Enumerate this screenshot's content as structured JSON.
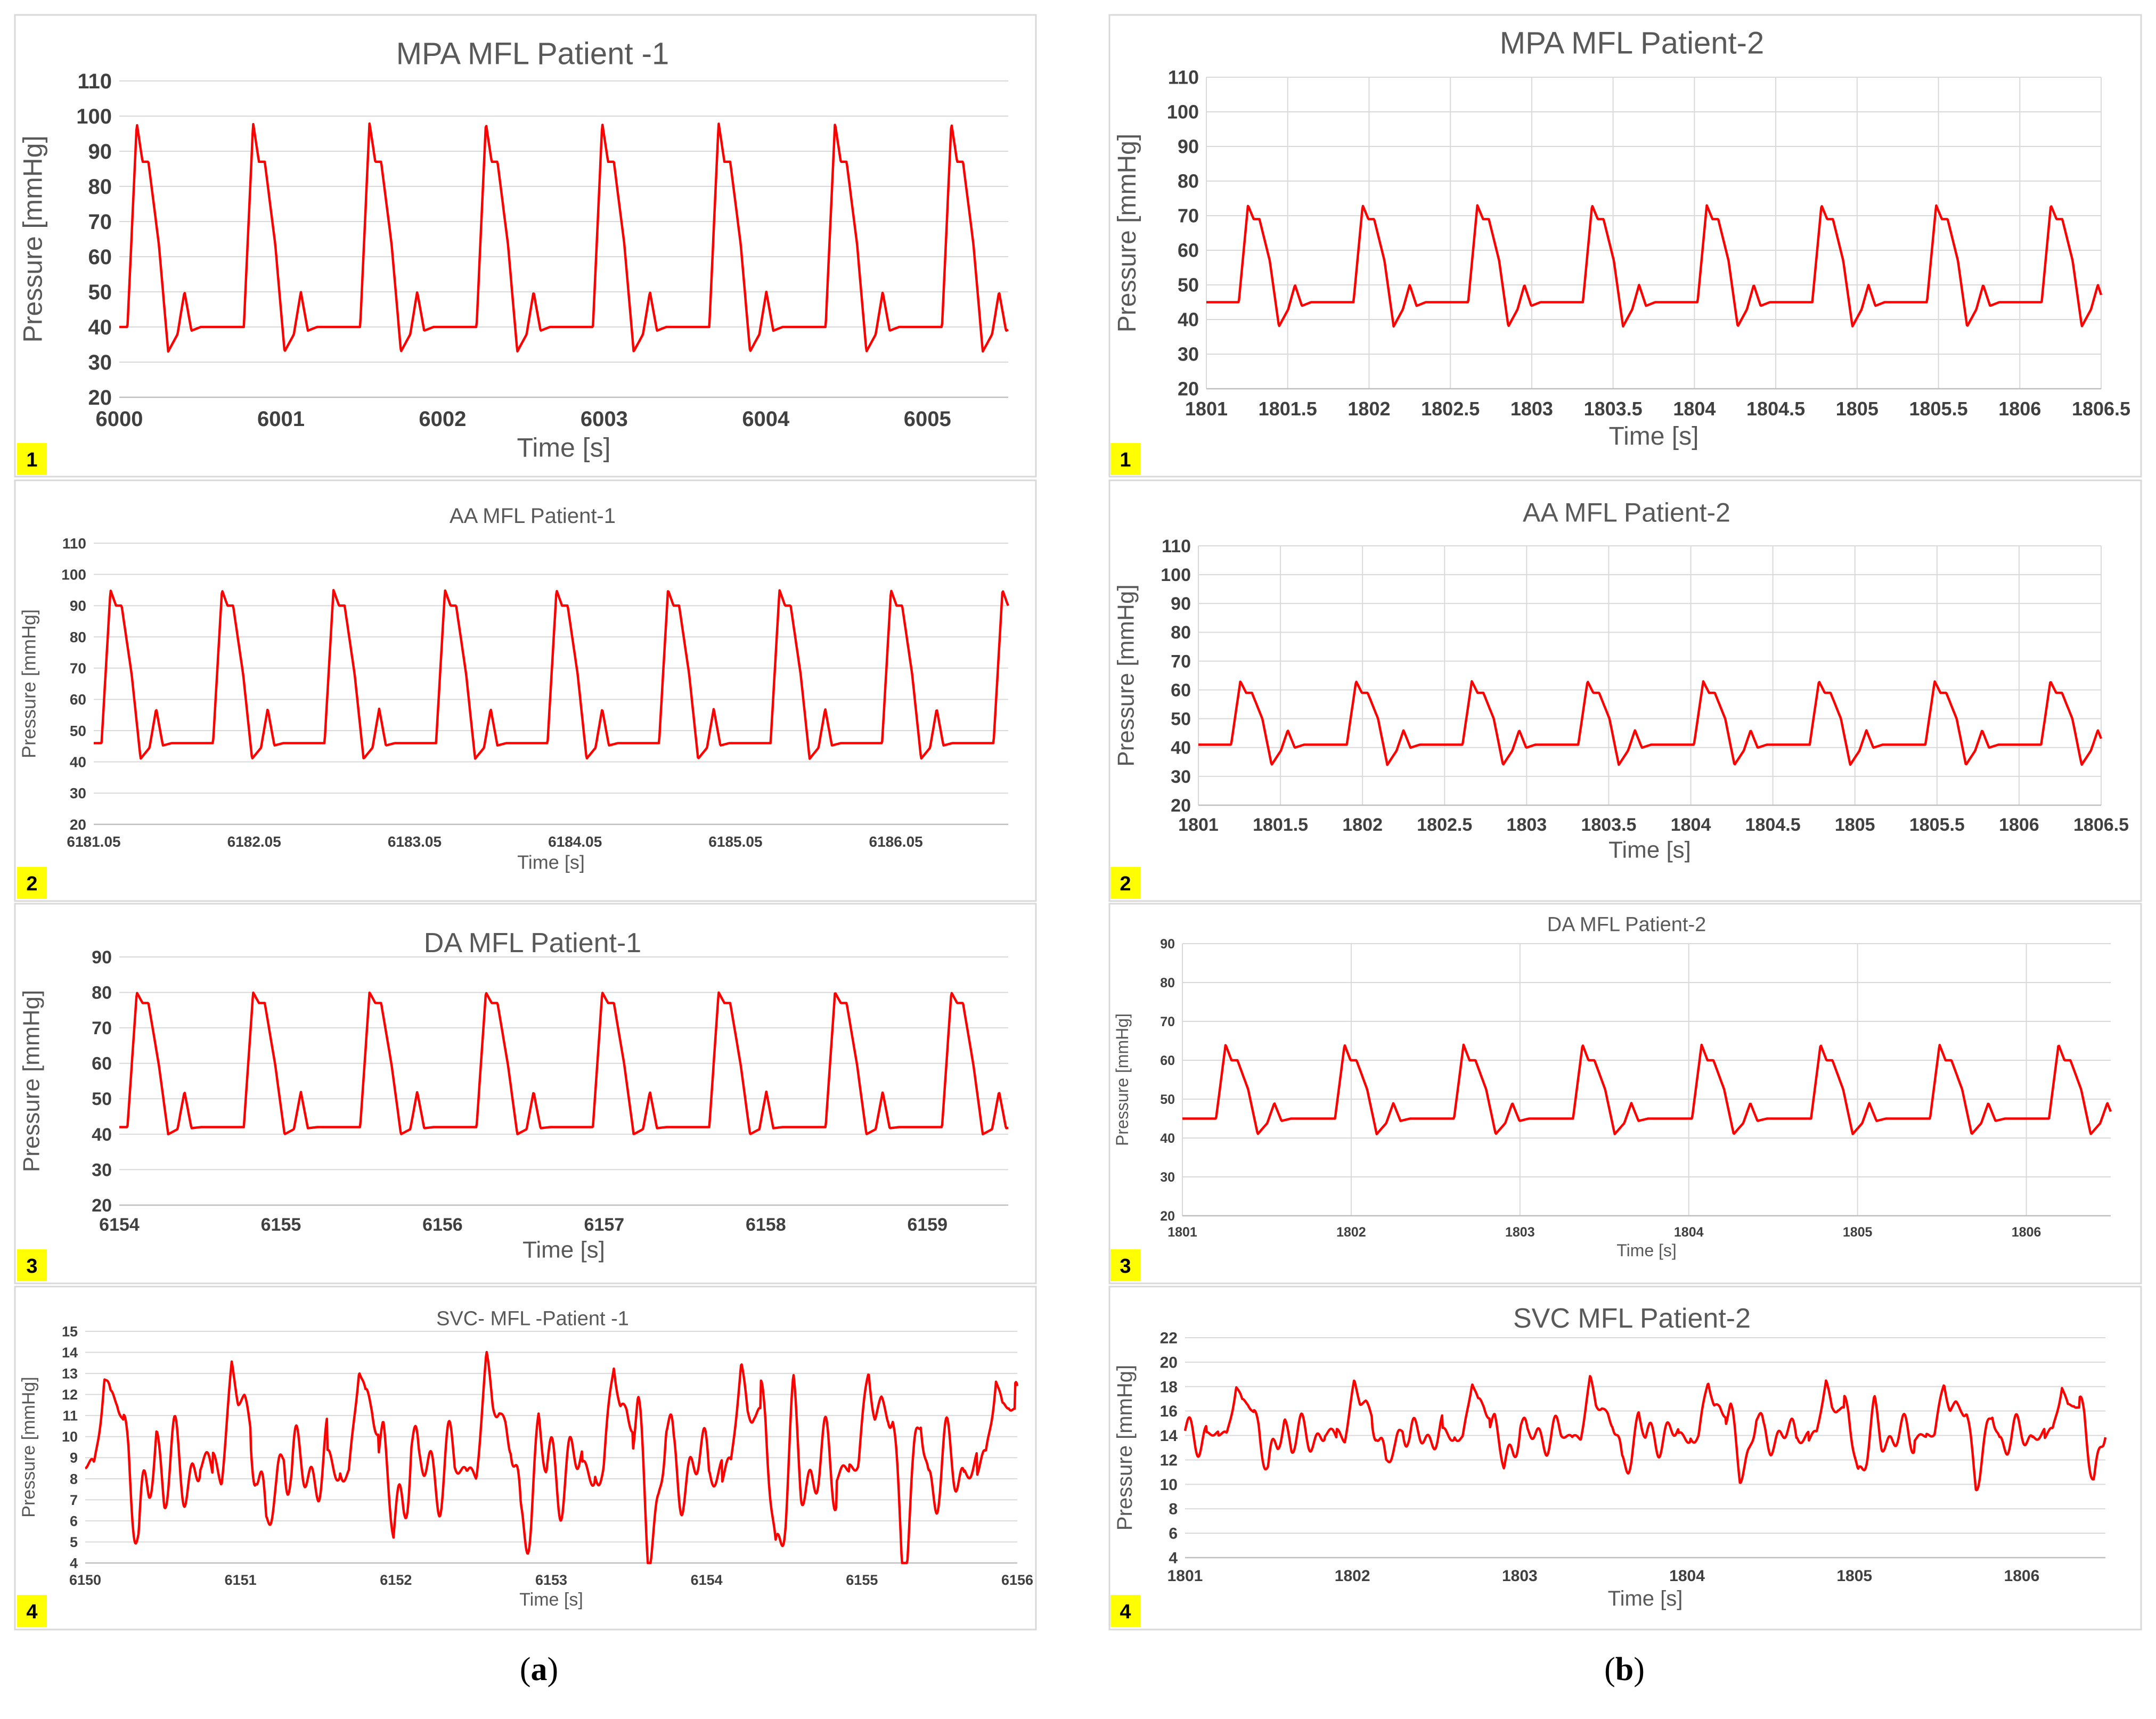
{
  "colors": {
    "trace": "#ff0000",
    "grid": "#d9d9d9",
    "frame": "#d9d9d9",
    "axis_text": "#404040",
    "title_text": "#595959",
    "badge": "#ffff00"
  },
  "column_labels": {
    "a": "a",
    "b": "b"
  },
  "chart_data": [
    {
      "type": "line",
      "panel_badge": "1",
      "title": "MPA MFL Patient -1",
      "xlabel": "Time  [s]",
      "ylabel": "Pressure [mmHg]",
      "xlim": [
        6000,
        6005.5
      ],
      "ylim": [
        20,
        110
      ],
      "grid": "horizontal",
      "x_ticks": [
        6000,
        6001,
        6002,
        6003,
        6004,
        6005
      ],
      "x_tick_labels": [
        "6000",
        "6001",
        "6002",
        "6003",
        "6004",
        "6005"
      ],
      "y_ticks": [
        20,
        30,
        40,
        50,
        60,
        70,
        80,
        90,
        100,
        110
      ],
      "cycle": {
        "start": 6000,
        "period": 0.72,
        "count": 8,
        "peak": 98,
        "shoulder": 87,
        "diastolic": 40,
        "dicrotic": 50,
        "trough": 33
      }
    },
    {
      "type": "line",
      "panel_badge": "2",
      "title": "AA MFL Patient-1",
      "xlabel": "Time [s]",
      "ylabel": "Pressure [mmHg]",
      "xlim": [
        6181.05,
        6186.75
      ],
      "ylim": [
        20,
        110
      ],
      "grid": "horizontal",
      "x_ticks": [
        6181.05,
        6182.05,
        6183.05,
        6184.05,
        6185.05,
        6186.05
      ],
      "x_tick_labels": [
        "6181.05",
        "6182.05",
        "6183.05",
        "6184.05",
        "6185.05",
        "6186.05"
      ],
      "y_ticks": [
        20,
        30,
        40,
        50,
        60,
        70,
        80,
        90,
        100,
        110
      ],
      "cycle": {
        "start": 6181.05,
        "period": 0.695,
        "count": 8,
        "peak": 95,
        "shoulder": 90,
        "diastolic": 46,
        "dicrotic": 57,
        "trough": 41
      }
    },
    {
      "type": "line",
      "panel_badge": "3",
      "title": "DA MFL Patient-1",
      "xlabel": "Time [s]",
      "ylabel": "Pressure [mmHg]",
      "xlim": [
        6154,
        6159.5
      ],
      "ylim": [
        20,
        90
      ],
      "grid": "horizontal",
      "x_ticks": [
        6154,
        6155,
        6156,
        6157,
        6158,
        6159
      ],
      "x_tick_labels": [
        "6154",
        "6155",
        "6156",
        "6157",
        "6158",
        "6159"
      ],
      "y_ticks": [
        20,
        30,
        40,
        50,
        60,
        70,
        80,
        90
      ],
      "cycle": {
        "start": 6154,
        "period": 0.72,
        "count": 8,
        "peak": 80,
        "shoulder": 77,
        "diastolic": 42,
        "dicrotic": 52,
        "trough": 40
      }
    },
    {
      "type": "line",
      "panel_badge": "4",
      "title": "SVC- MFL -Patient -1",
      "xlabel": "Time [s]",
      "ylabel": "Pressure [mmHg]",
      "xlim": [
        6150,
        6156
      ],
      "ylim": [
        4,
        15
      ],
      "grid": "horizontal",
      "x_ticks": [
        6150,
        6151,
        6152,
        6153,
        6154,
        6155,
        6156
      ],
      "x_tick_labels": [
        "6150",
        "6151",
        "6152",
        "6153",
        "6154",
        "6155",
        "6156"
      ],
      "y_ticks": [
        4,
        5,
        6,
        7,
        8,
        9,
        10,
        11,
        12,
        13,
        14,
        15
      ],
      "cycle": {
        "start": 6150,
        "period": 0.82,
        "count": 8,
        "peak": 13.2,
        "shoulder": 11.5,
        "diastolic": 8.5,
        "dicrotic": 10.5,
        "trough": 4.8,
        "oscillation": 2.5
      }
    },
    {
      "type": "line",
      "panel_badge": "1",
      "title": "MPA MFL Patient-2",
      "xlabel": "Time [s]",
      "ylabel": "Pressure [mmHg]",
      "xlim": [
        1801,
        1806.5
      ],
      "ylim": [
        20,
        110
      ],
      "grid": "both",
      "x_ticks": [
        1801,
        1801.5,
        1802,
        1802.5,
        1803,
        1803.5,
        1804,
        1804.5,
        1805,
        1805.5,
        1806,
        1806.5
      ],
      "x_tick_labels": [
        "1801",
        "1801.5",
        "1802",
        "1802.5",
        "1803",
        "1803.5",
        "1804",
        "1804.5",
        "1805",
        "1805.5",
        "1806",
        "1806.5"
      ],
      "y_ticks": [
        20,
        30,
        40,
        50,
        60,
        70,
        80,
        90,
        100,
        110
      ],
      "cycle": {
        "start": 1801.15,
        "period": 0.705,
        "count": 8,
        "peak": 73,
        "shoulder": 69,
        "diastolic": 45,
        "dicrotic": 50,
        "trough": 38
      }
    },
    {
      "type": "line",
      "panel_badge": "2",
      "title": "AA MFL Patient-2",
      "xlabel": "Time [s]",
      "ylabel": "Pressure [mmHg]",
      "xlim": [
        1801,
        1806.5
      ],
      "ylim": [
        20,
        110
      ],
      "grid": "both",
      "x_ticks": [
        1801,
        1801.5,
        1802,
        1802.5,
        1803,
        1803.5,
        1804,
        1804.5,
        1805,
        1805.5,
        1806,
        1806.5
      ],
      "x_tick_labels": [
        "1801",
        "1801.5",
        "1802",
        "1802.5",
        "1803",
        "1803.5",
        "1804",
        "1804.5",
        "1805",
        "1805.5",
        "1806",
        "1806.5"
      ],
      "y_ticks": [
        20,
        30,
        40,
        50,
        60,
        70,
        80,
        90,
        100,
        110
      ],
      "cycle": {
        "start": 1801.15,
        "period": 0.705,
        "count": 8,
        "peak": 63,
        "shoulder": 59,
        "diastolic": 41,
        "dicrotic": 46,
        "trough": 34
      }
    },
    {
      "type": "line",
      "panel_badge": "3",
      "title": "DA MFL Patient-2",
      "xlabel": "Time [s]",
      "ylabel": "Pressure [mmHg]",
      "xlim": [
        1801,
        1806.5
      ],
      "ylim": [
        20,
        90
      ],
      "grid": "both",
      "x_ticks": [
        1801,
        1802,
        1803,
        1804,
        1805,
        1806
      ],
      "x_tick_labels": [
        "1801",
        "1802",
        "1803",
        "1804",
        "1805",
        "1806"
      ],
      "y_ticks": [
        20,
        30,
        40,
        50,
        60,
        70,
        80,
        90
      ],
      "cycle": {
        "start": 1801.15,
        "period": 0.705,
        "count": 8,
        "peak": 64,
        "shoulder": 60,
        "diastolic": 45,
        "dicrotic": 49,
        "trough": 41
      }
    },
    {
      "type": "line",
      "panel_badge": "4",
      "title": "SVC MFL Patient-2",
      "xlabel": "Time [s]",
      "ylabel": "Pressure [mmHg]",
      "xlim": [
        1801,
        1806.5
      ],
      "ylim": [
        4,
        22
      ],
      "grid": "horizontal",
      "x_ticks": [
        1801,
        1802,
        1803,
        1804,
        1805,
        1806
      ],
      "x_tick_labels": [
        "1801",
        "1802",
        "1803",
        "1804",
        "1805",
        "1806"
      ],
      "y_ticks": [
        4,
        6,
        8,
        10,
        12,
        14,
        16,
        18,
        20,
        22
      ],
      "cycle": {
        "start": 1801.2,
        "period": 0.705,
        "count": 8,
        "peak": 18.3,
        "shoulder": 16.5,
        "diastolic": 14,
        "dicrotic": 15.5,
        "trough": 11,
        "oscillation": 1.8
      }
    }
  ]
}
